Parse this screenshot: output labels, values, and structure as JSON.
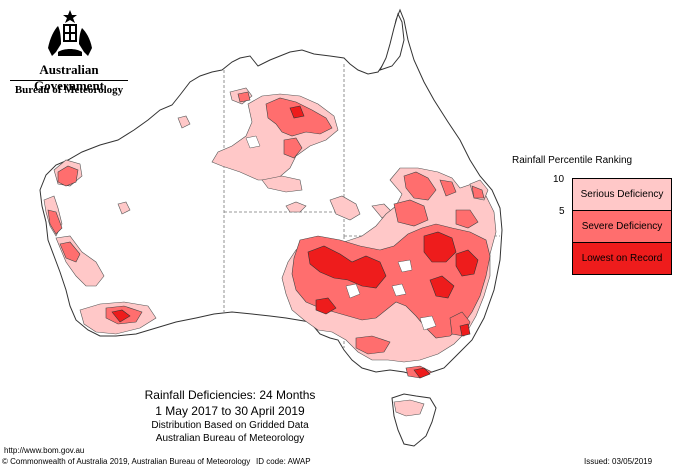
{
  "header": {
    "government": "Australian Government",
    "agency": "Bureau of Meteorology"
  },
  "legend": {
    "title": "Rainfall Percentile Ranking",
    "tick_upper": "10",
    "tick_lower": "5",
    "items": [
      {
        "label": "Serious Deficiency",
        "color": "#ffc8c8"
      },
      {
        "label": "Severe Deficiency",
        "color": "#ff6e6e"
      },
      {
        "label": "Lowest on Record",
        "color": "#ee1c1c"
      }
    ]
  },
  "caption": {
    "title": "Rainfall Deficiencies: 24 Months",
    "period": "1 May 2017 to 30 April 2019",
    "basis": "Distribution Based on Gridded Data",
    "source": "Australian Bureau of Meteorology"
  },
  "footer": {
    "url": "http://www.bom.gov.au",
    "copyright": "© Commonwealth of Australia 2019, Australian Bureau of Meteorology",
    "id_code": "ID code: AWAP",
    "issued": "Issued: 03/05/2019"
  },
  "colors": {
    "serious": "#ffc8c8",
    "severe": "#ff6e6e",
    "lowest": "#ee1c1c",
    "coast": "#333333"
  }
}
